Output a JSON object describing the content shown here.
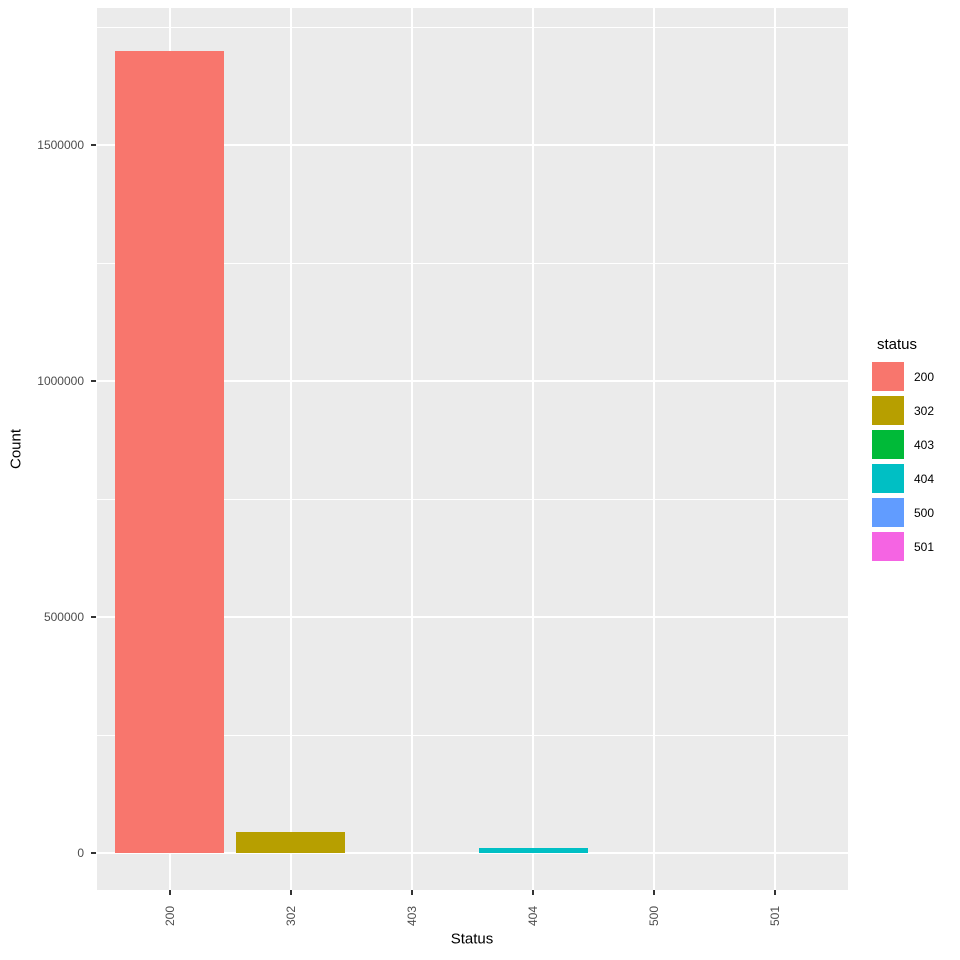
{
  "figure": {
    "background": "#FFFFFF",
    "panel_background": "#EBEBEB",
    "grid_color": "#FFFFFF",
    "tick_label_color": "#4D4D4D",
    "axis_title_color": "#000000"
  },
  "chart_data": {
    "type": "bar",
    "title": "",
    "xlabel": "Status",
    "ylabel": "Count",
    "categories": [
      "200",
      "302",
      "403",
      "404",
      "500",
      "501"
    ],
    "values": [
      1700000,
      45000,
      0,
      10000,
      0,
      0
    ],
    "colors": [
      "#F8766D",
      "#B79F00",
      "#00BA38",
      "#00BFC4",
      "#619CFF",
      "#F564E3"
    ],
    "ylim": [
      0,
      1790000
    ],
    "y_major_ticks": [
      0,
      500000,
      1000000,
      1500000
    ],
    "y_minor_ticks": [
      250000,
      750000,
      1250000,
      1750000
    ],
    "y_tick_labels": [
      "0",
      "500000",
      "1000000",
      "1500000"
    ],
    "grid": true,
    "legend_position": "right"
  },
  "axes": {
    "x_title": "Status",
    "y_title": "Count"
  },
  "legend": {
    "title": "status",
    "items": [
      {
        "label": "200",
        "color": "#F8766D"
      },
      {
        "label": "302",
        "color": "#B79F00"
      },
      {
        "label": "403",
        "color": "#00BA38"
      },
      {
        "label": "404",
        "color": "#00BFC4"
      },
      {
        "label": "500",
        "color": "#619CFF"
      },
      {
        "label": "501",
        "color": "#F564E3"
      }
    ]
  }
}
